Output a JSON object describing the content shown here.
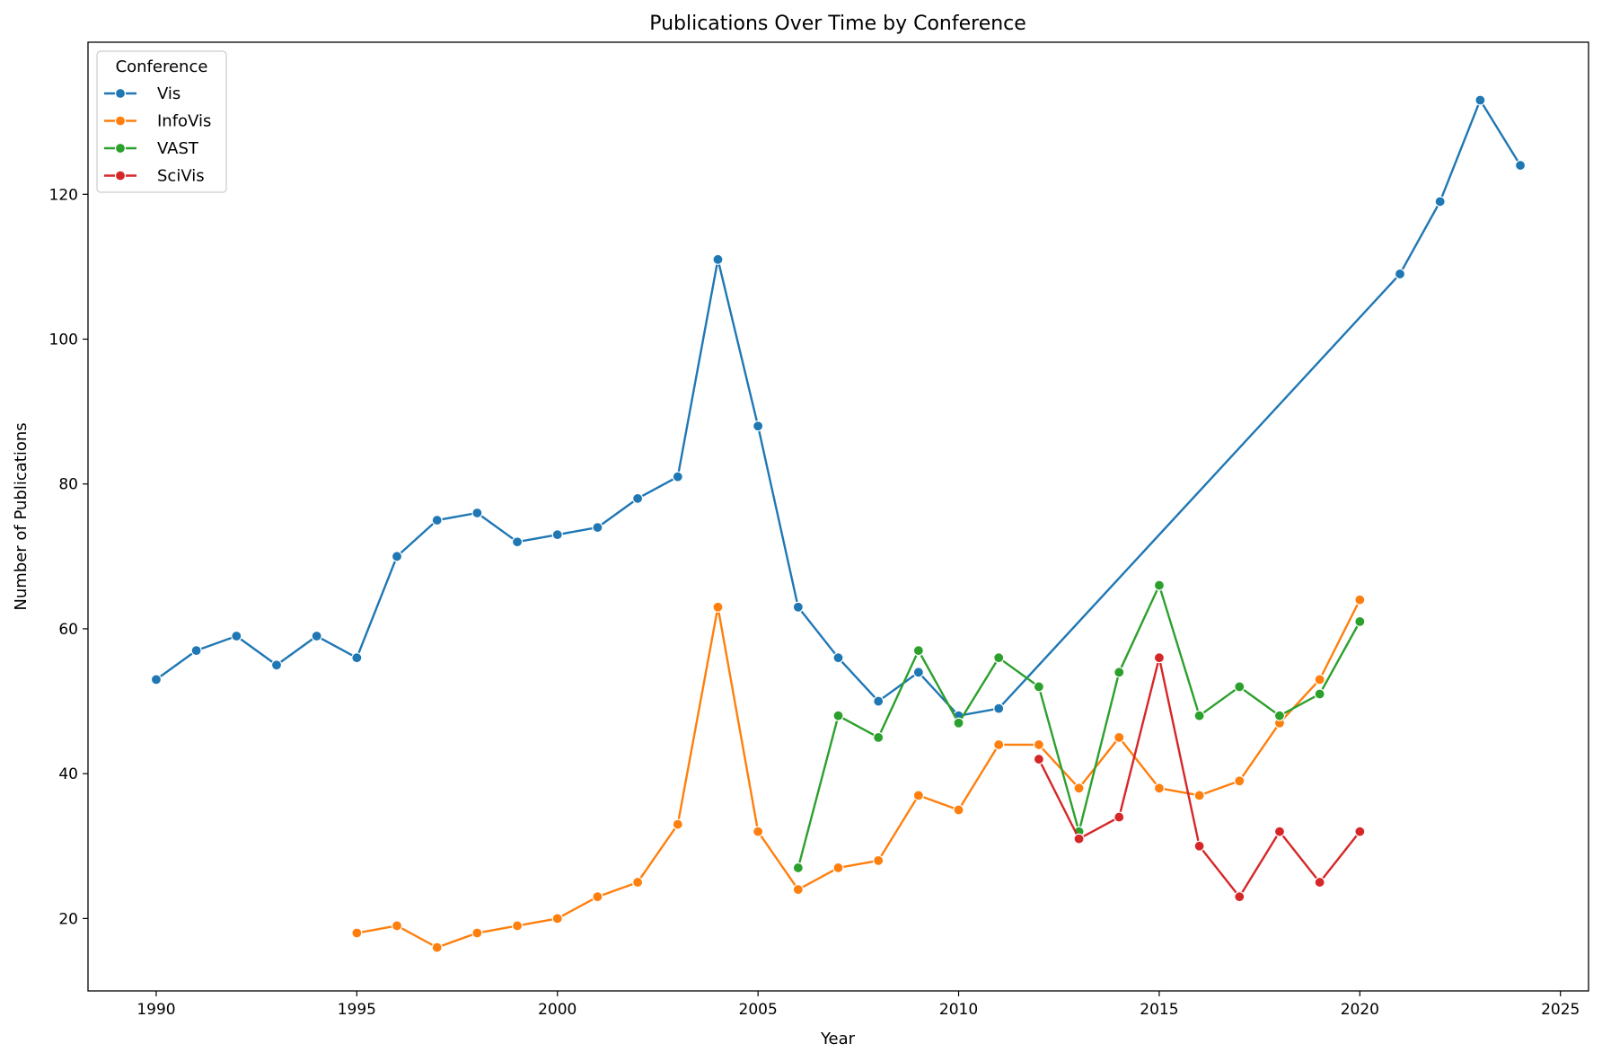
{
  "chart_data": {
    "type": "line",
    "title": "Publications Over Time by Conference",
    "xlabel": "Year",
    "ylabel": "Number of Publications",
    "xlim": [
      1988.3,
      2025.7
    ],
    "ylim": [
      10,
      141
    ],
    "xticks": [
      1990,
      1995,
      2000,
      2005,
      2010,
      2015,
      2020,
      2025
    ],
    "yticks": [
      20,
      40,
      60,
      80,
      100,
      120
    ],
    "grid": false,
    "legend": {
      "title": "Conference",
      "position": "top-left"
    },
    "series": [
      {
        "name": "Vis",
        "color": "#1f77b4",
        "points": [
          [
            1990,
            53
          ],
          [
            1991,
            57
          ],
          [
            1992,
            59
          ],
          [
            1993,
            55
          ],
          [
            1994,
            59
          ],
          [
            1995,
            56
          ],
          [
            1996,
            70
          ],
          [
            1997,
            75
          ],
          [
            1998,
            76
          ],
          [
            1999,
            72
          ],
          [
            2000,
            73
          ],
          [
            2001,
            74
          ],
          [
            2002,
            78
          ],
          [
            2003,
            81
          ],
          [
            2004,
            111
          ],
          [
            2005,
            88
          ],
          [
            2006,
            63
          ],
          [
            2007,
            56
          ],
          [
            2008,
            50
          ],
          [
            2009,
            54
          ],
          [
            2010,
            48
          ],
          [
            2011,
            49
          ],
          [
            2021,
            109
          ],
          [
            2022,
            119
          ],
          [
            2023,
            133
          ],
          [
            2024,
            124
          ]
        ]
      },
      {
        "name": "InfoVis",
        "color": "#ff7f0e",
        "points": [
          [
            1995,
            18
          ],
          [
            1996,
            19
          ],
          [
            1997,
            16
          ],
          [
            1998,
            18
          ],
          [
            1999,
            19
          ],
          [
            2000,
            20
          ],
          [
            2001,
            23
          ],
          [
            2002,
            25
          ],
          [
            2003,
            33
          ],
          [
            2004,
            63
          ],
          [
            2005,
            32
          ],
          [
            2006,
            24
          ],
          [
            2007,
            27
          ],
          [
            2008,
            28
          ],
          [
            2009,
            37
          ],
          [
            2010,
            35
          ],
          [
            2011,
            44
          ],
          [
            2012,
            44
          ],
          [
            2013,
            38
          ],
          [
            2014,
            45
          ],
          [
            2015,
            38
          ],
          [
            2016,
            37
          ],
          [
            2017,
            39
          ],
          [
            2018,
            47
          ],
          [
            2019,
            53
          ],
          [
            2020,
            64
          ]
        ]
      },
      {
        "name": "VAST",
        "color": "#2ca02c",
        "points": [
          [
            2006,
            27
          ],
          [
            2007,
            48
          ],
          [
            2008,
            45
          ],
          [
            2009,
            57
          ],
          [
            2010,
            47
          ],
          [
            2011,
            56
          ],
          [
            2012,
            52
          ],
          [
            2013,
            32
          ],
          [
            2014,
            54
          ],
          [
            2015,
            66
          ],
          [
            2016,
            48
          ],
          [
            2017,
            52
          ],
          [
            2018,
            48
          ],
          [
            2019,
            51
          ],
          [
            2020,
            61
          ]
        ]
      },
      {
        "name": "SciVis",
        "color": "#d62728",
        "points": [
          [
            2012,
            42
          ],
          [
            2013,
            31
          ],
          [
            2014,
            34
          ],
          [
            2015,
            56
          ],
          [
            2016,
            30
          ],
          [
            2017,
            23
          ],
          [
            2018,
            32
          ],
          [
            2019,
            25
          ],
          [
            2020,
            32
          ]
        ]
      }
    ]
  }
}
